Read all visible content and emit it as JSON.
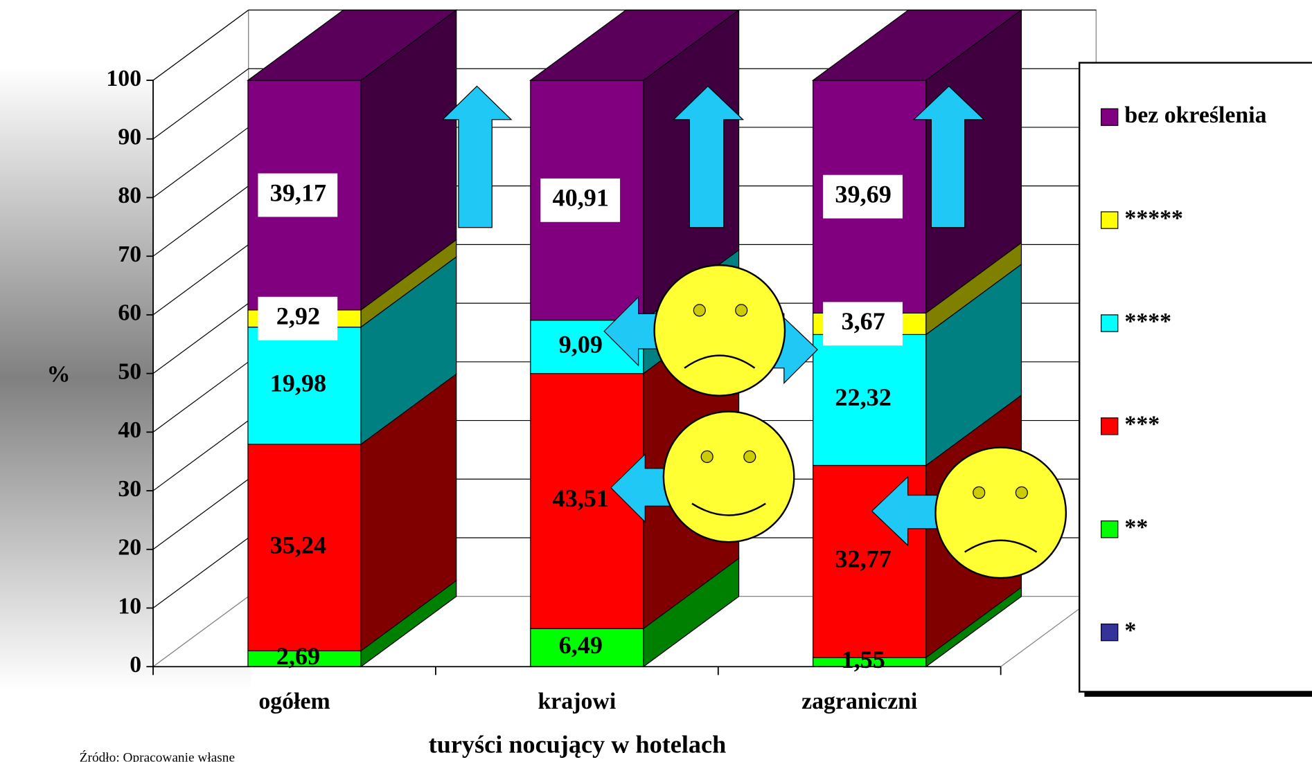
{
  "chart_data": {
    "type": "stacked_bar_3d",
    "categories": [
      "ogółem",
      "krajowi",
      "zagraniczni"
    ],
    "series": [
      {
        "name": "*",
        "color": "#333399",
        "values": [
          0,
          0,
          0
        ],
        "value_labels": [
          null,
          null,
          null
        ]
      },
      {
        "name": "**",
        "color": "#00ff00",
        "values": [
          2.69,
          6.49,
          1.55
        ],
        "value_labels": [
          "2,69",
          "6,49",
          "1,55"
        ]
      },
      {
        "name": "***",
        "color": "#ff0000",
        "values": [
          35.24,
          43.51,
          32.77
        ],
        "value_labels": [
          "35,24",
          "43,51",
          "32,77"
        ]
      },
      {
        "name": "****",
        "color": "#00ffff",
        "values": [
          19.98,
          9.09,
          22.32
        ],
        "value_labels": [
          "19,98",
          "9,09",
          "22,32"
        ]
      },
      {
        "name": "*****",
        "color": "#ffff00",
        "values": [
          2.92,
          0,
          3.67
        ],
        "value_labels": [
          "2,92",
          null,
          "3,67"
        ]
      },
      {
        "name": "bez określenia",
        "color": "#800080",
        "values": [
          39.17,
          40.91,
          39.69
        ],
        "value_labels": [
          "39,17",
          "40,91",
          "39,69"
        ]
      }
    ],
    "ylim": [
      0,
      100
    ],
    "yticks": [
      0,
      10,
      20,
      30,
      40,
      50,
      60,
      70,
      80,
      90,
      100
    ],
    "y_label": "%",
    "x_label": "turyści nocujący w hotelach",
    "source": "Źródło: Opracowanie własne",
    "grid": true,
    "legend": "right"
  }
}
